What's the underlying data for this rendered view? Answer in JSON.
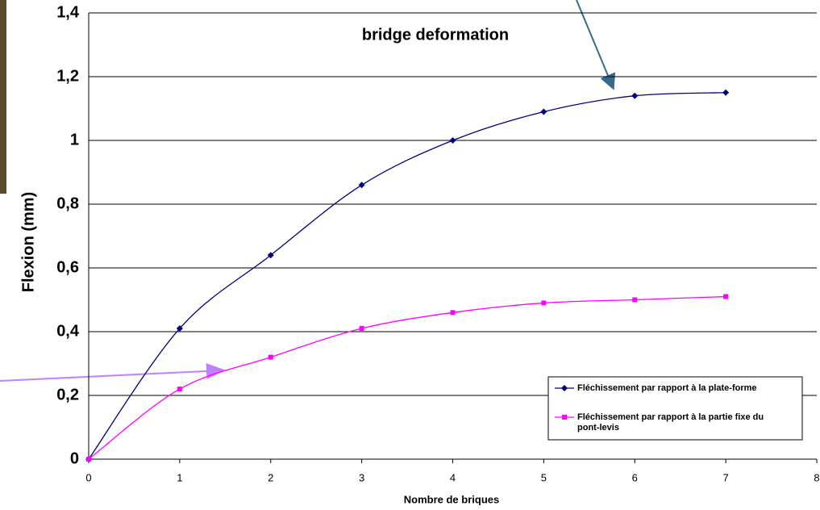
{
  "chart_data": {
    "type": "line",
    "annotation": "bridge deformation",
    "x_label": "Nombre de briques",
    "y_label": "Flexion (mm)",
    "x": [
      0,
      1,
      2,
      3,
      4,
      5,
      6,
      7
    ],
    "series": [
      {
        "name": "Fléchissement par rapport à la plate-forme",
        "color": "#000080",
        "marker": "diamond",
        "values": [
          0,
          0.41,
          0.64,
          0.86,
          1.0,
          1.09,
          1.14,
          1.15
        ]
      },
      {
        "name": "Fléchissement par rapport à la partie fixe du pont-levis",
        "color": "#ff00ff",
        "marker": "square",
        "values": [
          0,
          0.22,
          0.32,
          0.41,
          0.46,
          0.49,
          0.5,
          0.51
        ]
      }
    ],
    "xlim": [
      0,
      8
    ],
    "xticks": [
      0,
      1,
      2,
      3,
      4,
      5,
      6,
      7,
      8
    ],
    "ylim": [
      0,
      1.4
    ],
    "yticks": [
      0,
      {
        "value": 0.2,
        "label": "0,2"
      },
      {
        "value": 0.4,
        "label": "0,4"
      },
      {
        "value": 0.6,
        "label": "0,6"
      },
      {
        "value": 0.8,
        "label": "0,8"
      },
      1,
      {
        "value": 1.2,
        "label": "1,2"
      },
      {
        "value": 1.4,
        "label": "1,4"
      }
    ],
    "grid": true
  }
}
